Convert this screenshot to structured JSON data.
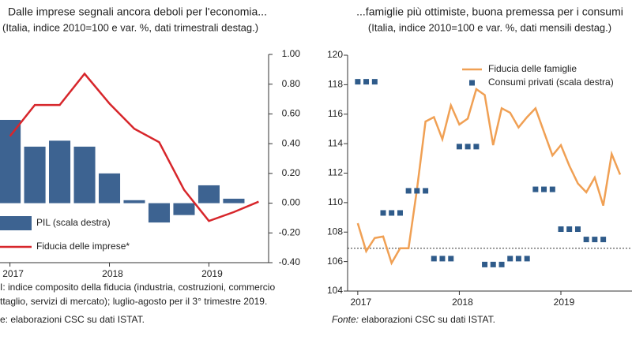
{
  "chart_data": [
    {
      "type": "bar",
      "title": "Dalle imprese segnali ancora deboli per l'economia...",
      "subtitle": "(Italia, indice 2010=100 e var. %, dati trimestrali destag.)",
      "xlim": [
        2016.9,
        2019.6
      ],
      "xticks": [
        2017,
        2018,
        2019
      ],
      "y2lim": [
        -0.4,
        1.0
      ],
      "y2ticks": [
        {
          "value": 1.0,
          "label": "1.00"
        },
        {
          "value": 0.8,
          "label": "0.80"
        },
        {
          "value": 0.6,
          "label": "0.60"
        },
        {
          "value": 0.4,
          "label": "0.40"
        },
        {
          "value": 0.2,
          "label": "0.20"
        },
        {
          "value": 0,
          "label": "0.00"
        },
        {
          "value": -0.2,
          "label": "-0.20"
        },
        {
          "value": -0.4,
          "label": "-0.40"
        }
      ],
      "series": [
        {
          "name": "PIL (scala destra)",
          "type": "bar",
          "axis": "y2",
          "color": "#3d6391",
          "x": [
            2017.0,
            2017.25,
            2017.5,
            2017.75,
            2018.0,
            2018.25,
            2018.5,
            2018.75,
            2019.0,
            2019.25
          ],
          "values": [
            0.56,
            0.38,
            0.42,
            0.38,
            0.2,
            0.02,
            -0.13,
            -0.08,
            0.12,
            0.03
          ]
        },
        {
          "name": "Fiducia delle imprese*",
          "type": "line",
          "axis": "y2",
          "color": "#d7262b",
          "x": [
            2017.0,
            2017.25,
            2017.5,
            2017.75,
            2018.0,
            2018.25,
            2018.5,
            2018.75,
            2019.0,
            2019.25,
            2019.5
          ],
          "values": [
            0.45,
            0.66,
            0.66,
            0.87,
            0.67,
            0.5,
            0.41,
            0.09,
            -0.12,
            -0.06,
            0.01
          ]
        }
      ],
      "notes": [
        "I: indice composito della fiducia (industria, costruzioni, commercio",
        "ttaglio, servizi di mercato); luglio-agosto per il 3° trimestre 2019.",
        "e: elaborazioni CSC su dati ISTAT."
      ]
    },
    {
      "type": "line",
      "title": "...famiglie più ottimiste, buona premessa per i consumi",
      "subtitle": "(Italia, indice 2010=100 e var. %, dati mensili destag.)",
      "xlim": [
        2016.9,
        2019.7
      ],
      "xticks": [
        2017,
        2018,
        2019
      ],
      "ylim": [
        104,
        120
      ],
      "yticks": [
        104,
        106,
        108,
        110,
        112,
        114,
        116,
        118,
        120
      ],
      "hline": 106.9,
      "series": [
        {
          "name": "Fiducia delle famiglie",
          "type": "line",
          "color": "#f0a054",
          "x": [
            2017.0,
            2017.083,
            2017.167,
            2017.25,
            2017.333,
            2017.417,
            2017.5,
            2017.583,
            2017.667,
            2017.75,
            2017.833,
            2017.917,
            2018.0,
            2018.083,
            2018.167,
            2018.25,
            2018.333,
            2018.417,
            2018.5,
            2018.583,
            2018.667,
            2018.75,
            2018.833,
            2018.917,
            2019.0,
            2019.083,
            2019.167,
            2019.25,
            2019.333,
            2019.417,
            2019.5,
            2019.583
          ],
          "values": [
            108.6,
            106.7,
            107.6,
            107.7,
            105.9,
            106.9,
            106.9,
            110.9,
            115.5,
            115.8,
            114.3,
            116.6,
            115.3,
            115.7,
            117.7,
            117.3,
            113.9,
            116.4,
            116.1,
            115.1,
            115.8,
            116.4,
            114.8,
            113.2,
            113.9,
            112.5,
            111.3,
            110.7,
            111.7,
            109.8,
            113.3,
            111.9
          ]
        },
        {
          "name": "Consumi privati (scala destra)",
          "type": "scatter",
          "color": "#2f5b8a",
          "x": [
            2017.0,
            2017.083,
            2017.167,
            2017.25,
            2017.333,
            2017.417,
            2017.5,
            2017.583,
            2017.667,
            2017.75,
            2017.833,
            2017.917,
            2018.0,
            2018.083,
            2018.167,
            2018.25,
            2018.333,
            2018.417,
            2018.5,
            2018.583,
            2018.667,
            2018.75,
            2018.833,
            2018.917,
            2019.0,
            2019.083,
            2019.167,
            2019.25,
            2019.333,
            2019.417
          ],
          "values": [
            118.2,
            118.2,
            118.2,
            109.3,
            109.3,
            109.3,
            110.8,
            110.8,
            110.8,
            106.2,
            106.2,
            106.2,
            113.8,
            113.8,
            113.8,
            105.8,
            105.8,
            105.8,
            106.2,
            106.2,
            106.2,
            110.9,
            110.9,
            110.9,
            108.2,
            108.2,
            108.2,
            107.5,
            107.5,
            107.5
          ]
        }
      ],
      "source_label": "Fonte:",
      "source": "elaborazioni CSC su dati ISTAT."
    }
  ]
}
